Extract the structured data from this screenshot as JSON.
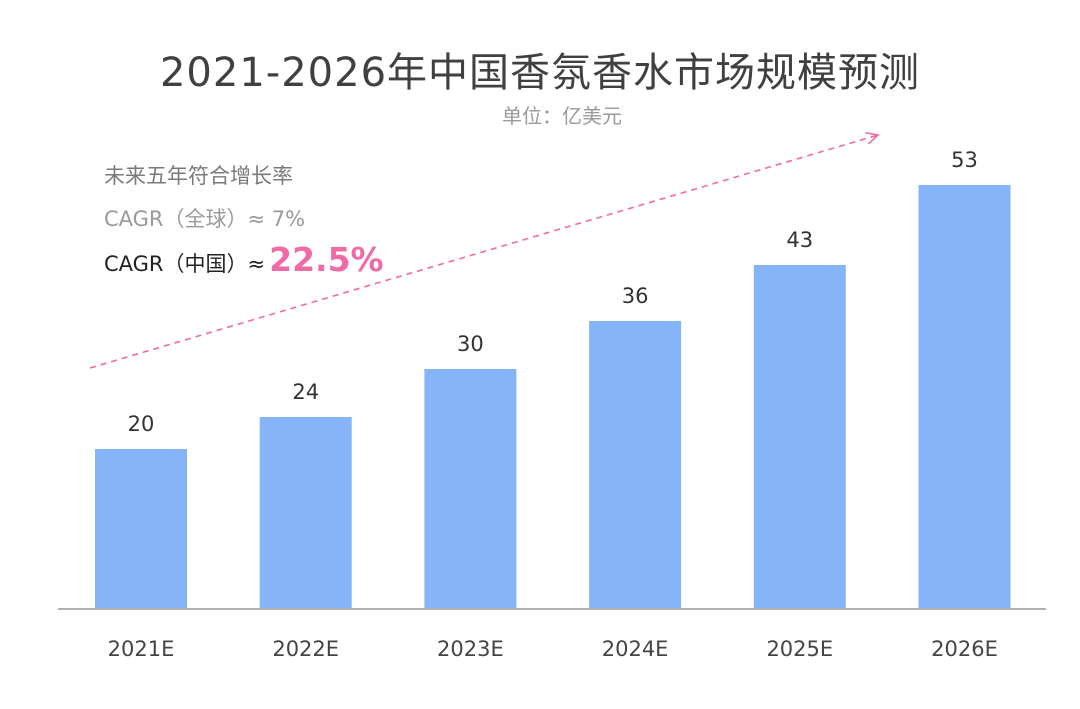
{
  "header": {
    "title": "2021-2026年中国香氛香水市场规模预测",
    "unit": "单位：亿美元"
  },
  "notes": {
    "line1": "未来五年符合增长率",
    "line2": "CAGR（全球）≈ 7%",
    "line3_prefix": "CAGR（中国）≈",
    "line3_value": "22.5%"
  },
  "colors": {
    "bar": "#85b4f8",
    "axis": "#b0b0b0",
    "arrow": "#f06aa6",
    "highlight": "#f06aa6"
  },
  "chart_data": {
    "type": "bar",
    "title": "2021-2026年中国香氛香水市场规模预测",
    "subtitle": "单位：亿美元",
    "categories": [
      "2021E",
      "2022E",
      "2023E",
      "2024E",
      "2025E",
      "2026E"
    ],
    "values": [
      20,
      24,
      30,
      36,
      43,
      53
    ],
    "data_labels": [
      "20",
      "24",
      "30",
      "36",
      "43",
      "53"
    ],
    "ylim": [
      0,
      60
    ],
    "grid": false,
    "legend": "none",
    "annotations": [
      "未来五年符合增长率",
      "CAGR（全球）≈ 7%",
      "CAGR（中国）≈ 22.5%"
    ]
  }
}
